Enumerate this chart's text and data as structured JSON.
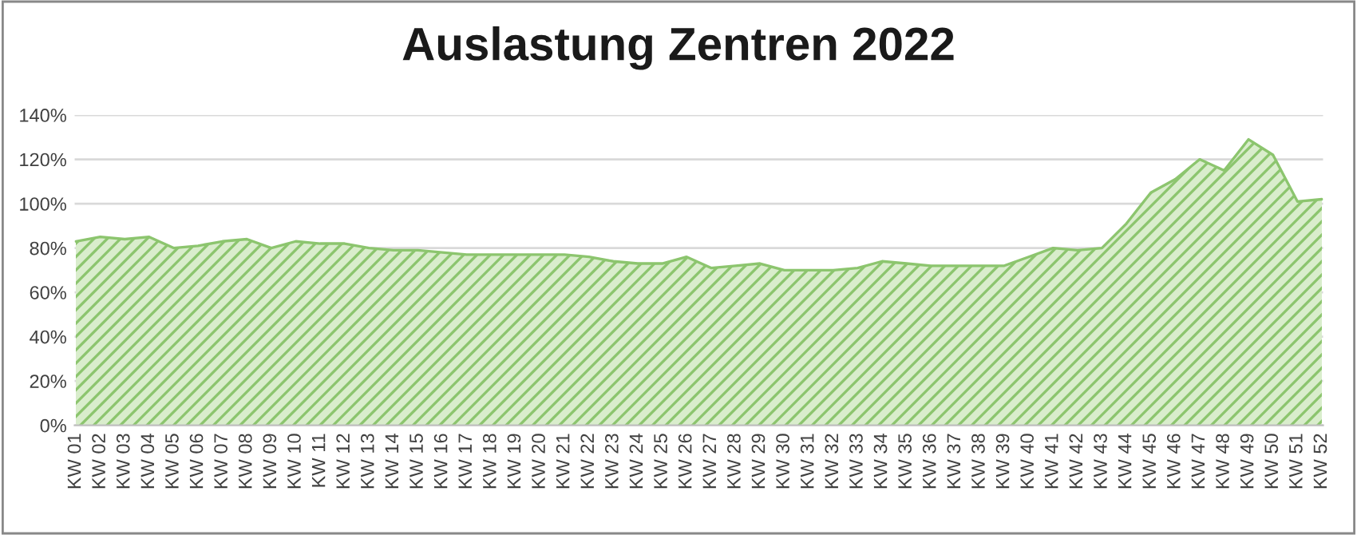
{
  "chart_data": {
    "type": "area",
    "title": "Auslastung Zentren 2022",
    "categories": [
      "KW 01",
      "KW 02",
      "KW 03",
      "KW 04",
      "KW 05",
      "KW 06",
      "KW 07",
      "KW 08",
      "KW 09",
      "KW 10",
      "KW 11",
      "KW 12",
      "KW 13",
      "KW 14",
      "KW 15",
      "KW 16",
      "KW 17",
      "KW 18",
      "KW 19",
      "KW 20",
      "KW 21",
      "KW 22",
      "KW 23",
      "KW 24",
      "KW 25",
      "KW 26",
      "KW 27",
      "KW 28",
      "KW 29",
      "KW 30",
      "KW 31",
      "KW 32",
      "KW 33",
      "KW 34",
      "KW 35",
      "KW 36",
      "KW 37",
      "KW 38",
      "KW 39",
      "KW 40",
      "KW 41",
      "KW 42",
      "KW 43",
      "KW 44",
      "KW 45",
      "KW 46",
      "KW 47",
      "KW 48",
      "KW 49",
      "KW 50",
      "KW 51",
      "KW 52"
    ],
    "series": [
      {
        "color": "#8cc56e",
        "values": [
          83,
          85,
          84,
          85,
          80,
          81,
          83,
          84,
          80,
          83,
          82,
          82,
          80,
          79,
          79,
          78,
          77,
          77,
          77,
          77,
          77,
          76,
          74,
          73,
          73,
          76,
          71,
          72,
          73,
          70,
          70,
          70,
          71,
          74,
          73,
          72,
          72,
          72,
          72,
          76,
          80,
          79,
          80,
          91,
          105,
          111,
          120,
          115,
          129,
          122,
          101,
          102
        ]
      }
    ],
    "ylim": [
      0,
      140
    ],
    "yticks": [
      {
        "value": 0,
        "label": "0%"
      },
      {
        "value": 20,
        "label": "20%"
      },
      {
        "value": 40,
        "label": "40%"
      },
      {
        "value": 60,
        "label": "60%"
      },
      {
        "value": 80,
        "label": "80%"
      },
      {
        "value": 100,
        "label": "100%"
      },
      {
        "value": 120,
        "label": "120%"
      },
      {
        "value": 140,
        "label": "140%"
      }
    ],
    "grid": "y",
    "legend": false
  }
}
